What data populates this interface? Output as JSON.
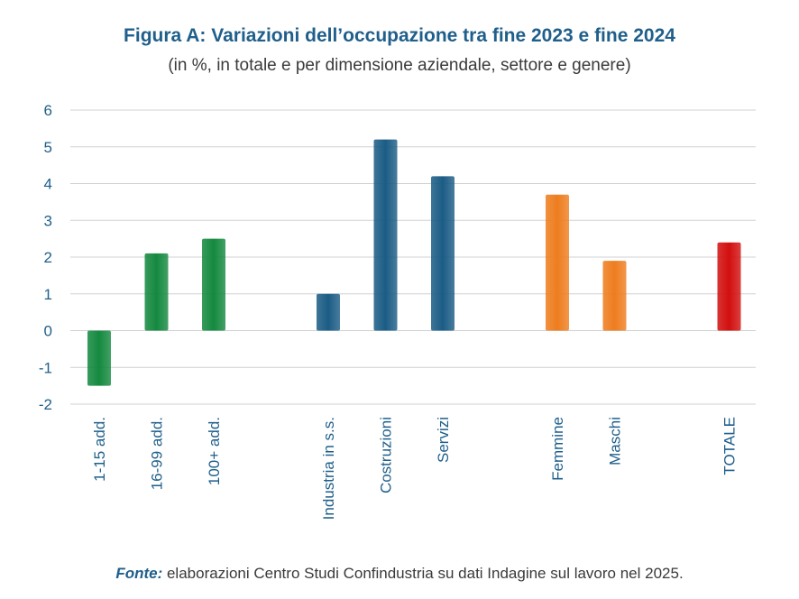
{
  "title": "Figura A: Variazioni dell’occupazione tra fine 2023 e fine 2024",
  "subtitle": "(in %, in totale e per dimensione aziendale, settore e genere)",
  "source": {
    "label": "Fonte:",
    "text": " elaborazioni Centro Studi Confindustria su dati Indagine sul lavoro nel 2025."
  },
  "colors": {
    "green": "#14893f",
    "blue": "#1b5c85",
    "orange": "#ee7d1e",
    "red": "#d20f0f",
    "axis_text": "#1f5f8b",
    "grid": "#d0d0d0"
  },
  "chart_data": {
    "type": "bar",
    "title": "Figura A: Variazioni dell’occupazione tra fine 2023 e fine 2024",
    "subtitle": "(in %, in totale e per dimensione aziendale, settore e genere)",
    "ylim": [
      -2,
      6
    ],
    "yticks": [
      6,
      5,
      4,
      3,
      2,
      1,
      0,
      -1,
      -2
    ],
    "grid": true,
    "groups": [
      {
        "color": "green",
        "items": [
          {
            "category": "1-15 add.",
            "value": -1.5
          },
          {
            "category": "16-99 add.",
            "value": 2.1
          },
          {
            "category": "100+ add.",
            "value": 2.5
          }
        ]
      },
      {
        "color": "blue",
        "items": [
          {
            "category": "Industria in s.s.",
            "value": 1.0
          },
          {
            "category": "Costruzioni",
            "value": 5.2
          },
          {
            "category": "Servizi",
            "value": 4.2
          }
        ]
      },
      {
        "color": "orange",
        "items": [
          {
            "category": "Femmine",
            "value": 3.7
          },
          {
            "category": "Maschi",
            "value": 1.9
          }
        ]
      },
      {
        "color": "red",
        "items": [
          {
            "category": "TOTALE",
            "value": 2.4
          }
        ]
      }
    ]
  }
}
